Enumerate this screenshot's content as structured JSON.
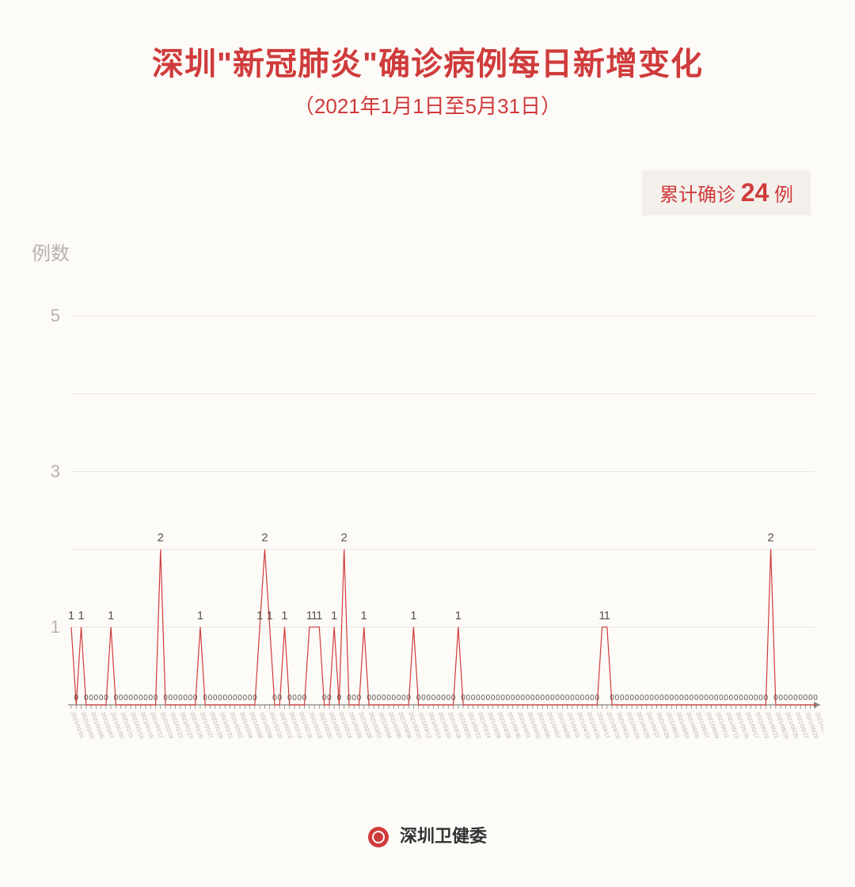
{
  "colors": {
    "accent": "#cf3b3b",
    "text_muted": "#b9b3ab",
    "grid": "#e9e5df",
    "axis": "#8a847c",
    "bg": "#fdfbf8",
    "badge_bg": "#f3f0ec",
    "black": "#333333"
  },
  "header": {
    "title": "深圳\"新冠肺炎\"确诊病例每日新增变化",
    "subtitle": "（2021年1月1日至5月31日）"
  },
  "badge": {
    "prefix": "累计确诊 ",
    "value": "24",
    "suffix": " 例"
  },
  "yaxis_label": "例数",
  "footer": {
    "text": "深圳卫健委"
  },
  "chart": {
    "type": "line",
    "ylim": [
      0,
      5.5
    ],
    "yticks": [
      1,
      3,
      5
    ],
    "grid_y": [
      1,
      2,
      3,
      4,
      5
    ],
    "line_color": "#cf3b3b",
    "line_width": 1.2,
    "value_label_fontsize": 15,
    "value_label_color": "#5a544c",
    "tick_color": "#8a847c",
    "xaxis_date_prefix": "2021",
    "series": [
      1,
      0,
      1,
      0,
      0,
      0,
      0,
      0,
      1,
      0,
      0,
      0,
      0,
      0,
      0,
      0,
      0,
      0,
      2,
      0,
      0,
      0,
      0,
      0,
      0,
      0,
      1,
      0,
      0,
      0,
      0,
      0,
      0,
      0,
      0,
      0,
      0,
      0,
      1,
      2,
      1,
      0,
      0,
      1,
      0,
      0,
      0,
      0,
      1,
      1,
      1,
      0,
      0,
      1,
      0,
      2,
      0,
      0,
      0,
      1,
      0,
      0,
      0,
      0,
      0,
      0,
      0,
      0,
      0,
      1,
      0,
      0,
      0,
      0,
      0,
      0,
      0,
      0,
      1,
      0,
      0,
      0,
      0,
      0,
      0,
      0,
      0,
      0,
      0,
      0,
      0,
      0,
      0,
      0,
      0,
      0,
      0,
      0,
      0,
      0,
      0,
      0,
      0,
      0,
      0,
      0,
      0,
      1,
      1,
      0,
      0,
      0,
      0,
      0,
      0,
      0,
      0,
      0,
      0,
      0,
      0,
      0,
      0,
      0,
      0,
      0,
      0,
      0,
      0,
      0,
      0,
      0,
      0,
      0,
      0,
      0,
      0,
      0,
      0,
      0,
      0,
      2,
      0,
      0,
      0,
      0,
      0,
      0,
      0,
      0,
      0
    ],
    "x_labels_start": {
      "month": 1,
      "day": 1
    },
    "x_label_fontsize": 7
  }
}
